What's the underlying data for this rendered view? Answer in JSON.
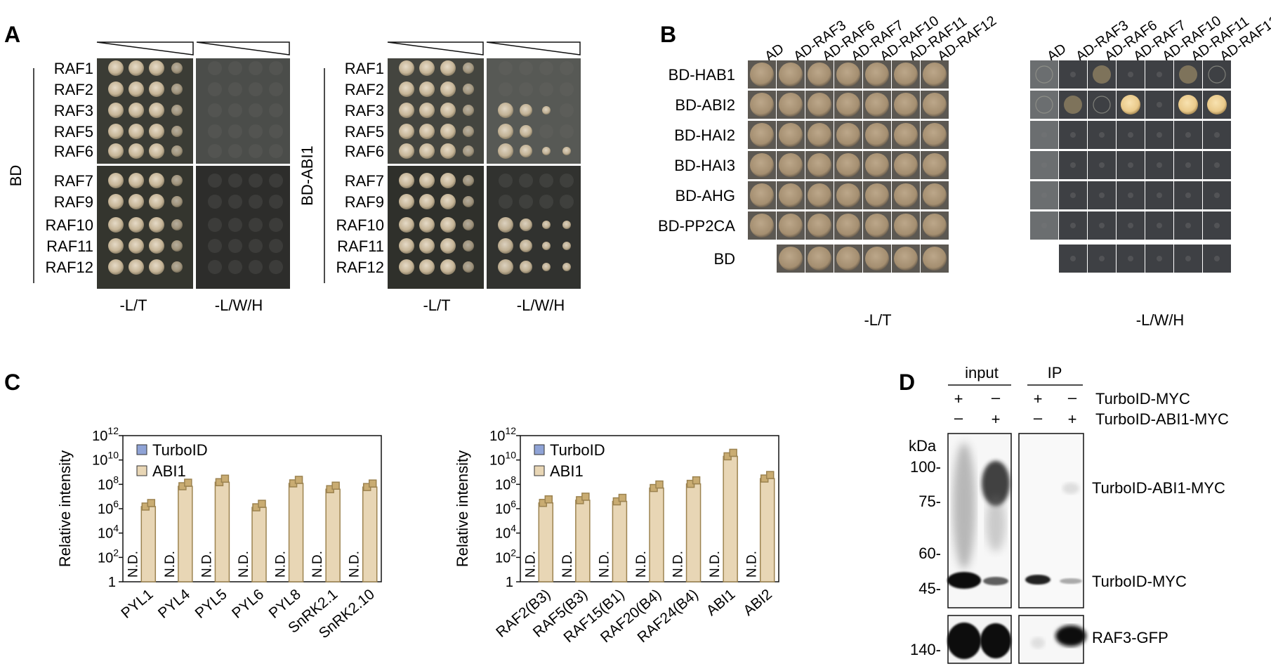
{
  "panel_labels": {
    "A": "A",
    "B": "B",
    "C": "C",
    "D": "D"
  },
  "panel_a": {
    "left_side_label": "BD",
    "right_side_label": "BD-ABI1",
    "rows": [
      "RAF1",
      "RAF2",
      "RAF3",
      "RAF5",
      "RAF6",
      "RAF7",
      "RAF9",
      "RAF10",
      "RAF11",
      "RAF12"
    ],
    "media_lt": "-L/T",
    "media_lwh": "-L/W/H"
  },
  "panel_b": {
    "columns": [
      "AD",
      "AD-RAF3",
      "AD-RAF6",
      "AD-RAF7",
      "AD-RAF10",
      "AD-RAF11",
      "AD-RAF12"
    ],
    "rows": [
      "BD-HAB1",
      "BD-ABI2",
      "BD-HAI2",
      "BD-HAI3",
      "BD-AHG",
      "BD-PP2CA",
      "BD"
    ],
    "media_lt": "-L/T",
    "media_lwh": "-L/W/H"
  },
  "panel_c": {
    "ylabel": "Relative intensity",
    "nd_label": "N.D.",
    "y_ticks": [
      {
        "base": "1",
        "exp": ""
      },
      {
        "base": "10",
        "exp": "2"
      },
      {
        "base": "10",
        "exp": "4"
      },
      {
        "base": "10",
        "exp": "6"
      },
      {
        "base": "10",
        "exp": "8"
      },
      {
        "base": "10",
        "exp": "10"
      },
      {
        "base": "10",
        "exp": "12"
      }
    ],
    "colors": {
      "turboid": "#8fa3d6",
      "abi1_fill": "#e8d6b5",
      "abi1_edge": "#9c8350",
      "marker": "#c9ac72"
    }
  },
  "chart_data": [
    {
      "type": "bar",
      "categories": [
        "PYL1",
        "PYL4",
        "PYL5",
        "PYL6",
        "PYL8",
        "SnRK2.1",
        "SnRK2.10"
      ],
      "series": [
        {
          "name": "TurboID",
          "values": [
            null,
            null,
            null,
            null,
            null,
            null,
            null
          ]
        },
        {
          "name": "ABI1",
          "values": [
            1500000,
            70000000,
            150000000,
            1300000,
            120000000,
            40000000,
            60000000
          ]
        }
      ],
      "ylabel": "Relative intensity",
      "yscale": "log",
      "ylim": [
        1,
        1000000000000
      ],
      "legend": "top-left",
      "annotation": "N.D."
    },
    {
      "type": "bar",
      "categories": [
        "RAF2(B3)",
        "RAF5(B3)",
        "RAF15(B1)",
        "RAF20(B4)",
        "RAF24(B4)",
        "ABI1",
        "ABI2"
      ],
      "series": [
        {
          "name": "TurboID",
          "values": [
            null,
            null,
            null,
            null,
            null,
            null,
            null
          ]
        },
        {
          "name": "ABI1",
          "values": [
            3000000,
            5000000,
            4000000,
            50000000,
            110000000,
            20000000000,
            300000000
          ]
        }
      ],
      "ylabel": "Relative intensity",
      "yscale": "log",
      "ylim": [
        1,
        1000000000000
      ],
      "legend": "top-left",
      "annotation": "N.D."
    }
  ],
  "panel_d": {
    "input": "input",
    "ip": "IP",
    "row1_label": "TurboID-MYC",
    "row2_label": "TurboID-ABI1-MYC",
    "plus": "+",
    "minus": "–",
    "kda": "kDa",
    "markers": [
      "100-",
      "75-",
      "60-",
      "45-",
      "140-"
    ],
    "band_labels": [
      "TurboID-ABI1-MYC",
      "TurboID-MYC",
      "RAF3-GFP"
    ]
  }
}
